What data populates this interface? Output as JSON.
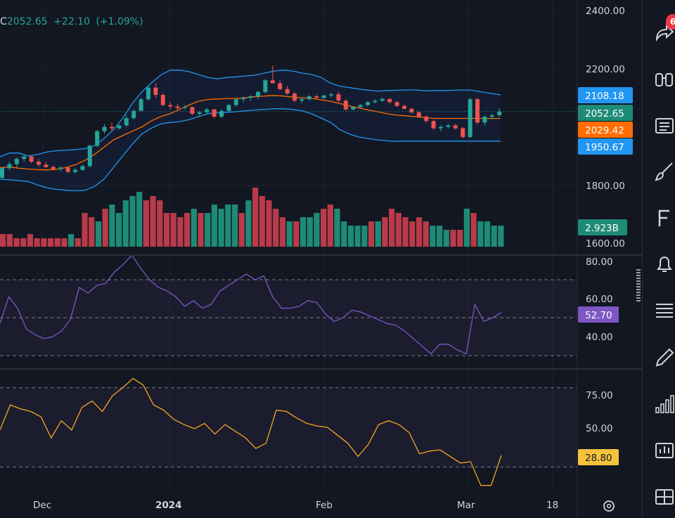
{
  "header": {
    "symbol_fragment": "C",
    "price": "2052.65",
    "change": "+22.10",
    "change_pct": "(+1.09%)"
  },
  "chart_data": [
    {
      "type": "candlestick",
      "pane": "price",
      "x_ticks": [
        "Dec",
        "2024",
        "Feb",
        "Mar",
        "18"
      ],
      "y_ticks": [
        "2400.00",
        "2200.00",
        "1800.00",
        "1600.00"
      ],
      "ylim": [
        1600,
        2400
      ],
      "last_price": 2052.65,
      "candles": [
        [
          1825,
          1860,
          1820,
          1858
        ],
        [
          1858,
          1880,
          1850,
          1872
        ],
        [
          1872,
          1895,
          1860,
          1890
        ],
        [
          1890,
          1905,
          1880,
          1898
        ],
        [
          1898,
          1902,
          1875,
          1880
        ],
        [
          1880,
          1890,
          1862,
          1870
        ],
        [
          1870,
          1880,
          1858,
          1862
        ],
        [
          1862,
          1868,
          1850,
          1855
        ],
        [
          1855,
          1865,
          1845,
          1860
        ],
        [
          1860,
          1862,
          1840,
          1845
        ],
        [
          1845,
          1860,
          1840,
          1852
        ],
        [
          1852,
          1870,
          1848,
          1865
        ],
        [
          1865,
          1940,
          1860,
          1935
        ],
        [
          1935,
          1990,
          1930,
          1985
        ],
        [
          1985,
          2010,
          1975,
          2000
        ],
        [
          2000,
          2015,
          1985,
          1995
        ],
        [
          1995,
          2010,
          1990,
          2005
        ],
        [
          2005,
          2040,
          2000,
          2030
        ],
        [
          2030,
          2060,
          2025,
          2055
        ],
        [
          2055,
          2100,
          2050,
          2095
        ],
        [
          2095,
          2140,
          2090,
          2135
        ],
        [
          2135,
          2150,
          2100,
          2110
        ],
        [
          2110,
          2115,
          2070,
          2075
        ],
        [
          2075,
          2085,
          2060,
          2070
        ],
        [
          2070,
          2080,
          2055,
          2065
        ],
        [
          2065,
          2075,
          2060,
          2068
        ],
        [
          2068,
          2070,
          2040,
          2045
        ],
        [
          2045,
          2055,
          2035,
          2050
        ],
        [
          2050,
          2065,
          2045,
          2060
        ],
        [
          2060,
          2062,
          2030,
          2035
        ],
        [
          2035,
          2060,
          2030,
          2055
        ],
        [
          2055,
          2080,
          2050,
          2075
        ],
        [
          2075,
          2100,
          2070,
          2095
        ],
        [
          2095,
          2105,
          2085,
          2100
        ],
        [
          2100,
          2110,
          2090,
          2105
        ],
        [
          2105,
          2125,
          2095,
          2120
        ],
        [
          2120,
          2165,
          2115,
          2160
        ],
        [
          2160,
          2210,
          2150,
          2150
        ],
        [
          2150,
          2160,
          2125,
          2130
        ],
        [
          2130,
          2140,
          2110,
          2115
        ],
        [
          2115,
          2120,
          2085,
          2090
        ],
        [
          2090,
          2100,
          2080,
          2095
        ],
        [
          2095,
          2110,
          2090,
          2105
        ],
        [
          2105,
          2112,
          2095,
          2100
        ],
        [
          2100,
          2110,
          2095,
          2108
        ],
        [
          2108,
          2118,
          2100,
          2112
        ],
        [
          2112,
          2120,
          2085,
          2090
        ],
        [
          2090,
          2095,
          2055,
          2060
        ],
        [
          2060,
          2070,
          2055,
          2068
        ],
        [
          2068,
          2078,
          2062,
          2075
        ],
        [
          2075,
          2090,
          2070,
          2085
        ],
        [
          2085,
          2095,
          2080,
          2090
        ],
        [
          2090,
          2100,
          2085,
          2096
        ],
        [
          2096,
          2098,
          2080,
          2085
        ],
        [
          2085,
          2090,
          2068,
          2072
        ],
        [
          2072,
          2078,
          2060,
          2062
        ],
        [
          2062,
          2065,
          2045,
          2050
        ],
        [
          2050,
          2055,
          2030,
          2035
        ],
        [
          2035,
          2040,
          2015,
          2020
        ],
        [
          2020,
          2025,
          1990,
          1995
        ],
        [
          1995,
          2005,
          1985,
          2000
        ],
        [
          2000,
          2010,
          1995,
          2005
        ],
        [
          2005,
          2010,
          1990,
          1995
        ],
        [
          1995,
          2000,
          1960,
          1965
        ],
        [
          1965,
          2100,
          1962,
          2095
        ],
        [
          2095,
          2100,
          2010,
          2015
        ],
        [
          2015,
          2040,
          2005,
          2035
        ],
        [
          2035,
          2045,
          2025,
          2040
        ],
        [
          2040,
          2065,
          2035,
          2052.65
        ]
      ],
      "bollinger": {
        "upper_label": "2108.18",
        "middle_label": "2029.42",
        "lower_label": "1950.67",
        "upper": [
          1897,
          1910,
          1910,
          1900,
          1905,
          1914,
          1918,
          1920,
          1922,
          1925,
          1935,
          1960,
          1990,
          2030,
          2080,
          2120,
          2150,
          2178,
          2195,
          2195,
          2190,
          2180,
          2170,
          2165,
          2170,
          2172,
          2175,
          2178,
          2185,
          2192,
          2195,
          2192,
          2185,
          2180,
          2170,
          2150,
          2140,
          2135,
          2130,
          2126,
          2123,
          2125,
          2126,
          2127,
          2127,
          2124,
          2125,
          2125,
          2126,
          2127,
          2126,
          2120,
          2115,
          2110
        ],
        "middle": [
          1860,
          1862,
          1858,
          1855,
          1853,
          1852,
          1854,
          1860,
          1870,
          1885,
          1905,
          1930,
          1955,
          1970,
          1985,
          2000,
          2020,
          2035,
          2045,
          2060,
          2075,
          2088,
          2094,
          2096,
          2097,
          2098,
          2100,
          2104,
          2106,
          2108,
          2106,
          2102,
          2100,
          2098,
          2093,
          2088,
          2080,
          2072,
          2065,
          2058,
          2052,
          2045,
          2040,
          2038,
          2035,
          2032,
          2029,
          2029,
          2029,
          2029,
          2029,
          2029,
          2029,
          2029
        ],
        "lower": [
          1820,
          1818,
          1815,
          1812,
          1800,
          1790,
          1785,
          1782,
          1780,
          1782,
          1795,
          1820,
          1860,
          1900,
          1940,
          1975,
          1995,
          2010,
          2015,
          2018,
          2025,
          2035,
          2045,
          2048,
          2050,
          2052,
          2055,
          2058,
          2060,
          2062,
          2062,
          2060,
          2055,
          2045,
          2030,
          2015,
          1990,
          1975,
          1965,
          1960,
          1955,
          1952,
          1950,
          1951,
          1951,
          1951,
          1951,
          1951,
          1951,
          1951,
          1951,
          1951,
          1951,
          1951
        ]
      }
    },
    {
      "type": "bar",
      "pane": "volume",
      "last_volume_label": "2.923B",
      "values": [
        3,
        3,
        2,
        2,
        3,
        2,
        2,
        2,
        2,
        2,
        3,
        2,
        8,
        7,
        6,
        9,
        10,
        8,
        11,
        12,
        13,
        11,
        12,
        11,
        8,
        8,
        7,
        8,
        9,
        8,
        8,
        10,
        9,
        10,
        10,
        8,
        11,
        14,
        12,
        11,
        9,
        7,
        6,
        6,
        7,
        7,
        8,
        9,
        10,
        9,
        6,
        5,
        5,
        5,
        6,
        6,
        7,
        9,
        8,
        7,
        6,
        7,
        6,
        5,
        5,
        4,
        4,
        4,
        9,
        8,
        6,
        6,
        5,
        5
      ],
      "colors": [
        "#b93a48",
        "#b93a48",
        "#b93a48",
        "#b93a48",
        "#b93a48",
        "#b93a48",
        "#b93a48",
        "#b93a48",
        "#b93a48",
        "#b93a48",
        "#1e8b76",
        "#b93a48",
        "#b93a48",
        "#b93a48",
        "#1e8b76",
        "#b93a48",
        "#1e8b76",
        "#1e8b76",
        "#1e8b76",
        "#1e8b76",
        "#1e8b76",
        "#b93a48",
        "#b93a48",
        "#b93a48",
        "#b93a48",
        "#b93a48",
        "#b93a48",
        "#b93a48",
        "#1e8b76",
        "#b93a48",
        "#1e8b76",
        "#1e8b76",
        "#1e8b76",
        "#1e8b76",
        "#1e8b76",
        "#b93a48",
        "#1e8b76",
        "#b93a48",
        "#b93a48",
        "#b93a48",
        "#b93a48",
        "#b93a48",
        "#1e8b76",
        "#b93a48",
        "#1e8b76",
        "#1e8b76",
        "#1e8b76",
        "#b93a48",
        "#b93a48",
        "#1e8b76",
        "#1e8b76",
        "#1e8b76",
        "#1e8b76",
        "#1e8b76",
        "#b93a48",
        "#1e8b76",
        "#b93a48",
        "#b93a48",
        "#b93a48",
        "#b93a48",
        "#b93a48",
        "#b93a48",
        "#b93a48",
        "#1e8b76",
        "#1e8b76",
        "#1e8b76",
        "#b93a48",
        "#b93a48",
        "#1e8b76",
        "#b93a48",
        "#1e8b76",
        "#1e8b76",
        "#1e8b76",
        "#1e8b76"
      ]
    },
    {
      "type": "line",
      "pane": "rsi",
      "y_ticks": [
        "80.00",
        "60.00",
        "40.00"
      ],
      "ylim": [
        25,
        90
      ],
      "bands": [
        70,
        50,
        30
      ],
      "last_label": "52.70",
      "values": [
        47,
        61,
        55,
        44,
        41,
        39,
        40,
        43,
        49,
        66,
        63,
        67,
        68,
        74,
        78,
        83,
        76,
        70,
        66,
        64,
        61,
        56,
        59,
        55,
        57,
        64,
        67,
        70,
        73,
        70,
        72,
        61,
        55,
        55,
        56,
        59,
        58,
        52,
        48,
        50,
        54,
        53,
        51,
        49,
        47,
        46,
        43,
        39,
        35,
        31,
        36,
        36,
        33,
        31,
        57,
        48,
        50,
        52.7
      ]
    },
    {
      "type": "line",
      "pane": "oscillator",
      "y_ticks": [
        "75.00",
        "50.00"
      ],
      "ylim": [
        0,
        95
      ],
      "bands": [
        80,
        20
      ],
      "last_label": "28.80",
      "values": [
        48,
        67,
        64,
        62,
        58,
        42,
        55,
        48,
        65,
        70,
        62,
        74,
        80,
        87,
        82,
        67,
        63,
        56,
        52,
        49,
        53,
        45,
        52,
        47,
        42,
        34,
        38,
        63,
        62,
        57,
        53,
        51,
        50,
        44,
        38,
        28,
        37,
        52,
        55,
        52,
        46,
        30,
        32,
        33,
        28,
        23,
        24,
        6,
        6,
        28.8
      ]
    }
  ],
  "colors": {
    "background": "#131722",
    "up": "#26a69a",
    "down": "#ef5350",
    "bb_band": "#2962ff",
    "bb_basis": "#ff6d00",
    "rsi_line": "#7e57c2",
    "osc_line": "#f5a623",
    "grid": "#1e222d"
  },
  "settings_icon": "gear-icon",
  "sidebar": {
    "badge": "6",
    "icons": [
      "share-icon",
      "binoculars-icon",
      "news-icon",
      "brush-icon",
      "font-icon",
      "alert-bell-icon",
      "list-icon",
      "pencil-icon",
      "bar-chart-icon",
      "signal-icon",
      "grid-icon"
    ]
  }
}
